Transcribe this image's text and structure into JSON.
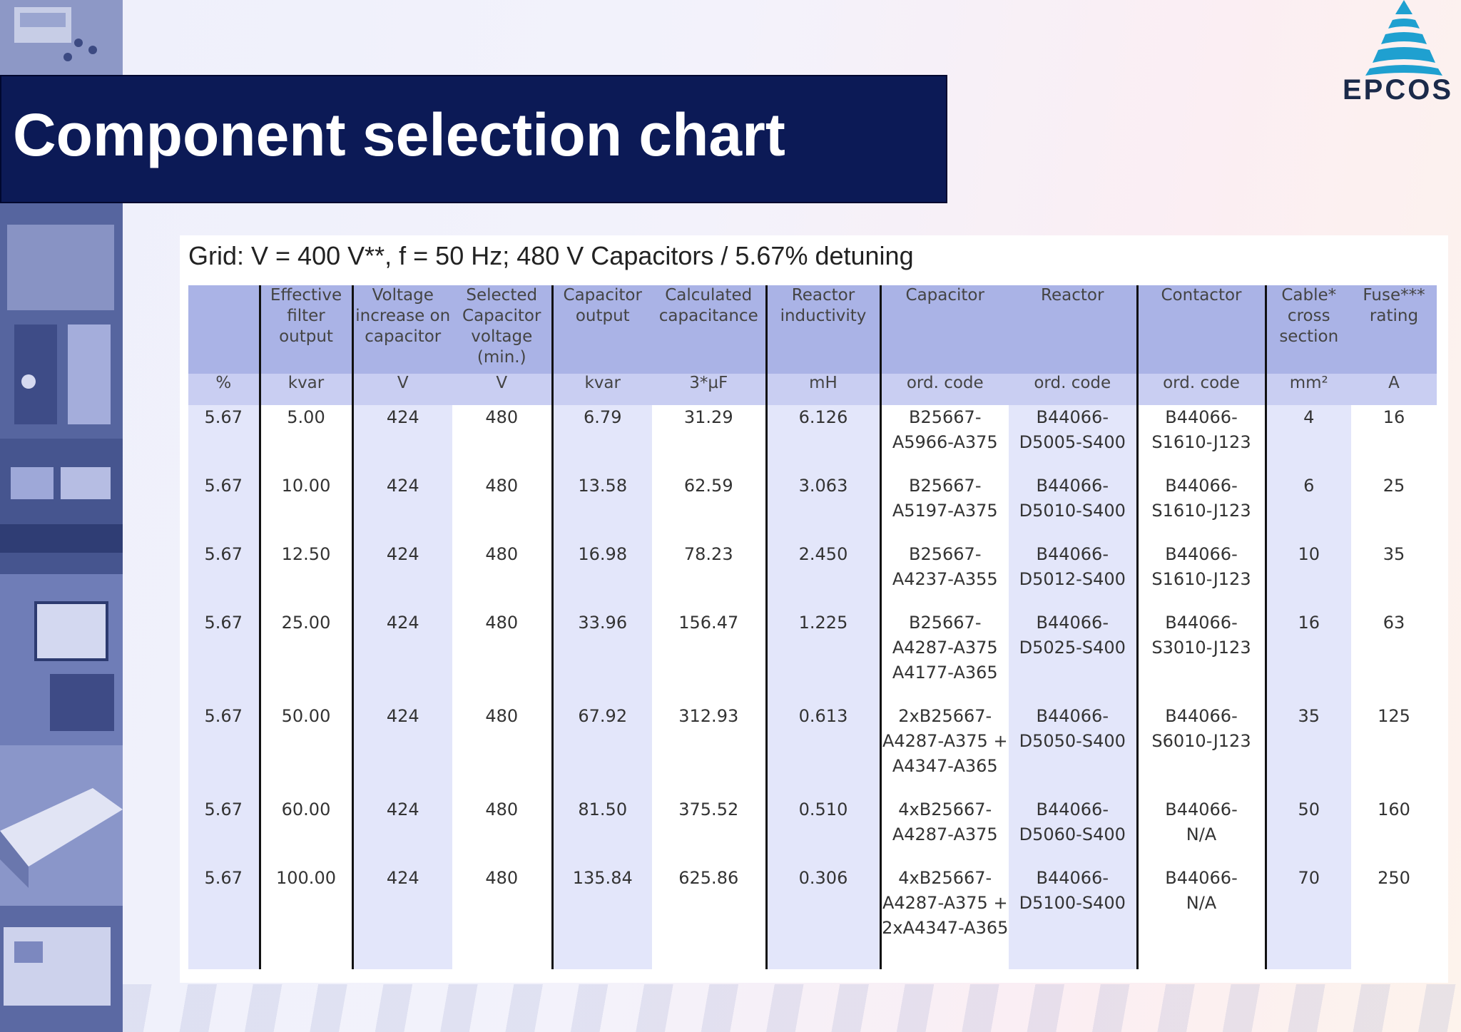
{
  "page": {
    "title": "Component selection chart",
    "logo_text": "EPCOS",
    "brand_color": "#0c1a56",
    "logo_color": "#1fa0d0"
  },
  "table": {
    "caption": "Grid: V = 400 V**, f = 50 Hz; 480 V Capacitors / 5.67% detuning",
    "headers": [
      "",
      "Effective filter output",
      "Voltage increase on capacitor",
      "Selected Capacitor voltage (min.)",
      "Capacitor output",
      "Calculated capacitance",
      "Reactor inductivity",
      "Capacitor",
      "Reactor",
      "Contactor",
      "Cable* cross section",
      "Fuse*** rating"
    ],
    "units": [
      "%",
      "kvar",
      "V",
      "V",
      "kvar",
      "3*µF",
      "mH",
      "ord. code",
      "ord. code",
      "ord. code",
      "mm²",
      "A"
    ],
    "rows": [
      [
        "5.67",
        "5.00",
        "424",
        "480",
        "6.79",
        "31.29",
        "6.126",
        "B25667-\nA5966-A375",
        "B44066-\nD5005-S400",
        "B44066-\nS1610-J123",
        "4",
        "16"
      ],
      [
        "5.67",
        "10.00",
        "424",
        "480",
        "13.58",
        "62.59",
        "3.063",
        "B25667-\nA5197-A375",
        "B44066-\nD5010-S400",
        "B44066-\nS1610-J123",
        "6",
        "25"
      ],
      [
        "5.67",
        "12.50",
        "424",
        "480",
        "16.98",
        "78.23",
        "2.450",
        "B25667-\nA4237-A355",
        "B44066-\nD5012-S400",
        "B44066-\nS1610-J123",
        "10",
        "35"
      ],
      [
        "5.67",
        "25.00",
        "424",
        "480",
        "33.96",
        "156.47",
        "1.225",
        "B25667-\nA4287-A375\nA4177-A365",
        "B44066-\nD5025-S400",
        "B44066-\nS3010-J123",
        "16",
        "63"
      ],
      [
        "5.67",
        "50.00",
        "424",
        "480",
        "67.92",
        "312.93",
        "0.613",
        "2xB25667-\nA4287-A375 +\nA4347-A365",
        "B44066-\nD5050-S400",
        "B44066-\nS6010-J123",
        "35",
        "125"
      ],
      [
        "5.67",
        "60.00",
        "424",
        "480",
        "81.50",
        "375.52",
        "0.510",
        "4xB25667-\nA4287-A375",
        "B44066-\nD5060-S400",
        "B44066-\nN/A",
        "50",
        "160"
      ],
      [
        "5.67",
        "100.00",
        "424",
        "480",
        "135.84",
        "625.86",
        "0.306",
        "4xB25667-\nA4287-A375 +\n2xA4347-A365",
        "B44066-\nD5100-S400",
        "B44066-\nN/A",
        "70",
        "250"
      ]
    ]
  }
}
